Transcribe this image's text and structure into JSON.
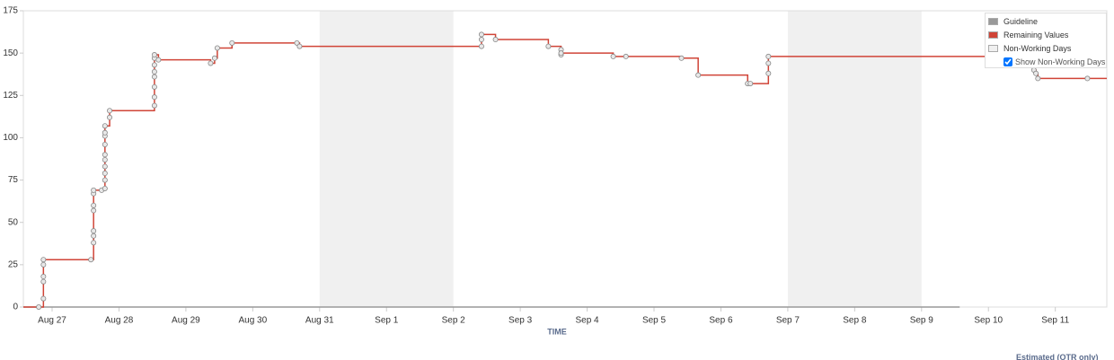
{
  "chart_data": {
    "type": "step",
    "x_label": "TIME",
    "footnote": "Estimated (OTR only)",
    "xlim": [
      -0.43,
      15.77
    ],
    "ylim": [
      0,
      175
    ],
    "yticks": [
      0,
      25,
      50,
      75,
      100,
      125,
      150,
      175
    ],
    "xticks": [
      {
        "value": 0,
        "label": "Aug 27"
      },
      {
        "value": 1,
        "label": "Aug 28"
      },
      {
        "value": 2,
        "label": "Aug 29"
      },
      {
        "value": 3,
        "label": "Aug 30"
      },
      {
        "value": 4,
        "label": "Aug 31"
      },
      {
        "value": 5,
        "label": "Sep 1"
      },
      {
        "value": 6,
        "label": "Sep 2"
      },
      {
        "value": 7,
        "label": "Sep 3"
      },
      {
        "value": 8,
        "label": "Sep 4"
      },
      {
        "value": 9,
        "label": "Sep 5"
      },
      {
        "value": 10,
        "label": "Sep 6"
      },
      {
        "value": 11,
        "label": "Sep 7"
      },
      {
        "value": 12,
        "label": "Sep 8"
      },
      {
        "value": 13,
        "label": "Sep 9"
      },
      {
        "value": 14,
        "label": "Sep 10"
      },
      {
        "value": 15,
        "label": "Sep 11"
      }
    ],
    "non_working": {
      "name": "Non-Working Days",
      "color": "#f0f0f0",
      "ranges": [
        [
          4,
          6
        ],
        [
          11,
          13
        ]
      ]
    },
    "controls": {
      "label": "Show Non-Working Days",
      "checked": true
    },
    "series": [
      {
        "name": "Guideline",
        "color": "#999999",
        "x": [
          -0.43,
          13.57
        ],
        "values": [
          0,
          0
        ]
      },
      {
        "name": "Remaining Values",
        "color": "#d04437",
        "x": [
          -0.2,
          -0.13,
          -0.13,
          -0.13,
          -0.13,
          -0.13,
          0.58,
          0.62,
          0.62,
          0.62,
          0.62,
          0.62,
          0.62,
          0.62,
          0.74,
          0.79,
          0.79,
          0.79,
          0.79,
          0.79,
          0.79,
          0.79,
          0.79,
          0.79,
          0.79,
          0.86,
          0.86,
          1.53,
          1.53,
          1.53,
          1.53,
          1.53,
          1.53,
          1.53,
          1.53,
          1.59,
          2.37,
          2.43,
          2.47,
          2.69,
          3.66,
          3.7,
          6.42,
          6.42,
          6.42,
          6.63,
          7.42,
          7.61,
          7.61,
          7.61,
          8.39,
          8.58,
          9.41,
          9.66,
          10.4,
          10.44,
          10.71,
          10.71,
          10.71,
          14.68,
          14.71,
          14.74,
          15.48
        ],
        "values": [
          0,
          5,
          15,
          18,
          25,
          28,
          28,
          38,
          42,
          45,
          57,
          60,
          67,
          69,
          69,
          70,
          75,
          79,
          83,
          87,
          90,
          96,
          101,
          103,
          107,
          112,
          116,
          119,
          124,
          130,
          136,
          139,
          143,
          147,
          149,
          146,
          144,
          147,
          153,
          156,
          156,
          154,
          154,
          158,
          161,
          158,
          154,
          152,
          149,
          150,
          148,
          148,
          147,
          137,
          132,
          132,
          138,
          144,
          148,
          140,
          138,
          135,
          135
        ]
      }
    ]
  }
}
